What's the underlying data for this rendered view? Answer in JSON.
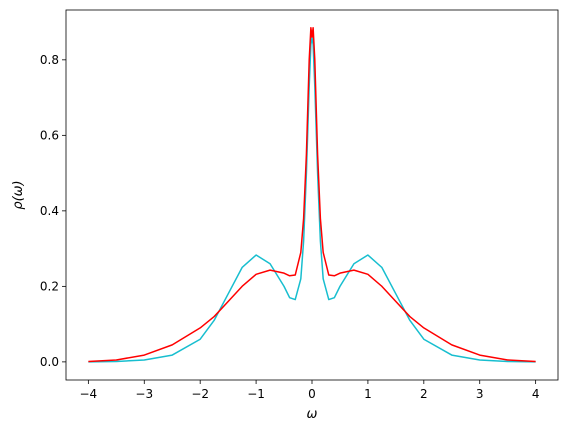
{
  "chart_data": {
    "type": "line",
    "x_label": "ω",
    "y_label": "ρ(ω)",
    "x": [
      -4,
      -3.5,
      -3,
      -2.5,
      -2,
      -1.75,
      -1.5,
      -1.25,
      -1,
      -0.75,
      -0.5,
      -0.4,
      -0.3,
      -0.2,
      -0.15,
      -0.1,
      -0.05,
      -0.02,
      0,
      0.02,
      0.05,
      0.1,
      0.15,
      0.2,
      0.3,
      0.4,
      0.5,
      0.75,
      1,
      1.25,
      1.5,
      1.75,
      2,
      2.5,
      3,
      3.5,
      4
    ],
    "series": [
      {
        "color": "#17becf",
        "values": [
          0.0,
          0.001,
          0.005,
          0.018,
          0.06,
          0.11,
          0.18,
          0.25,
          0.283,
          0.26,
          0.2,
          0.17,
          0.165,
          0.22,
          0.32,
          0.5,
          0.73,
          0.84,
          0.86,
          0.84,
          0.73,
          0.5,
          0.32,
          0.22,
          0.165,
          0.17,
          0.2,
          0.26,
          0.283,
          0.25,
          0.18,
          0.11,
          0.06,
          0.018,
          0.005,
          0.001,
          0.0
        ]
      },
      {
        "color": "#ff0000",
        "values": [
          0.001,
          0.005,
          0.018,
          0.045,
          0.09,
          0.12,
          0.16,
          0.2,
          0.232,
          0.243,
          0.235,
          0.228,
          0.23,
          0.29,
          0.38,
          0.55,
          0.8,
          0.885,
          0.86,
          0.885,
          0.8,
          0.55,
          0.38,
          0.29,
          0.23,
          0.228,
          0.235,
          0.243,
          0.232,
          0.2,
          0.16,
          0.12,
          0.09,
          0.045,
          0.018,
          0.005,
          0.001
        ]
      }
    ],
    "xlim": [
      -4.4,
      4.4
    ],
    "ylim": [
      -0.048,
      0.932
    ],
    "xticks": [
      {
        "value": -4,
        "label": "−4"
      },
      {
        "value": -3,
        "label": "−3"
      },
      {
        "value": -2,
        "label": "−2"
      },
      {
        "value": -1,
        "label": "−1"
      },
      0,
      1,
      2,
      3,
      4
    ],
    "yticks": [
      {
        "value": 0,
        "label": "0.0"
      },
      {
        "value": 0.2,
        "label": "0.2"
      },
      {
        "value": 0.4,
        "label": "0.4"
      },
      {
        "value": 0.6,
        "label": "0.6"
      },
      {
        "value": 0.8,
        "label": "0.8"
      }
    ],
    "grid": false
  }
}
